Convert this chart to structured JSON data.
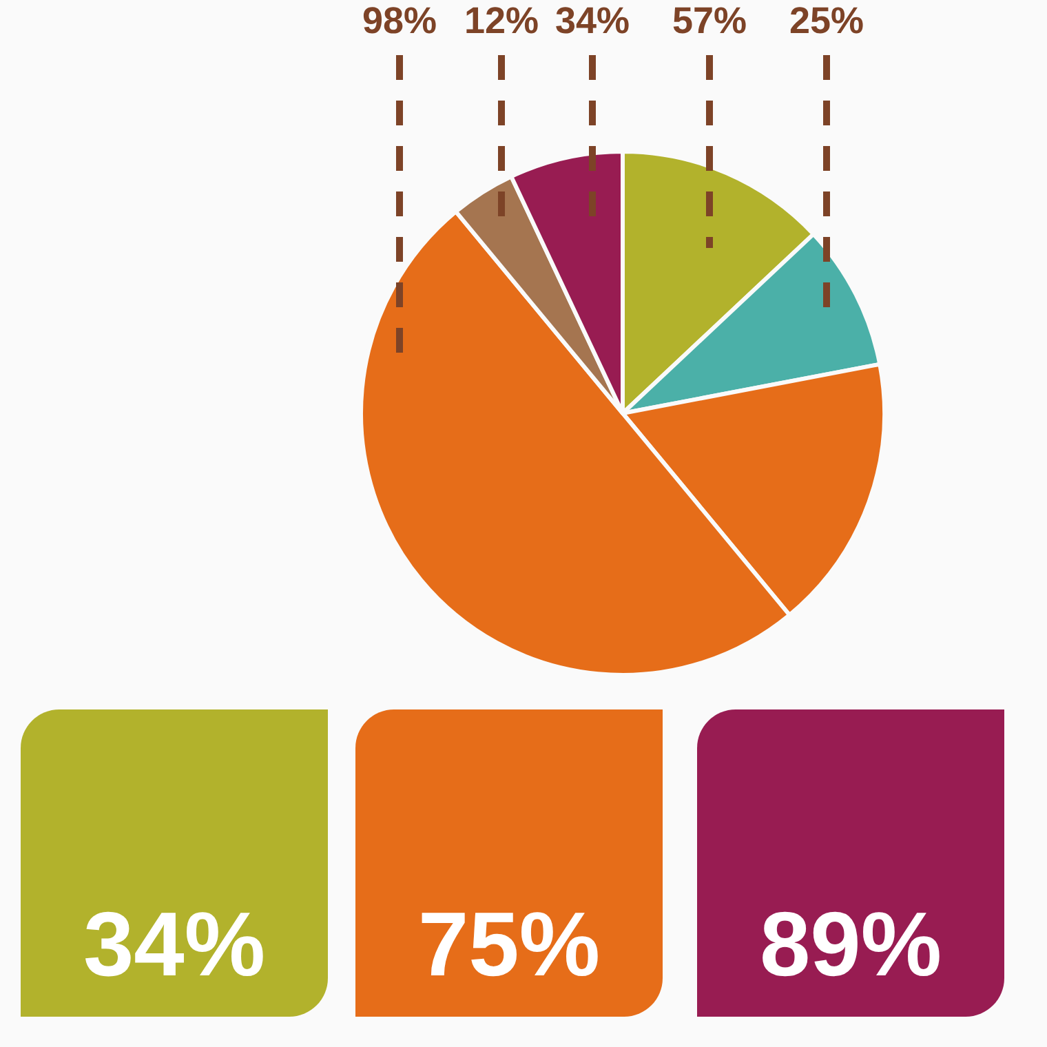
{
  "chart_data": [
    {
      "type": "pie",
      "categories": [
        null,
        null,
        null,
        null,
        null,
        null
      ],
      "values": [
        13,
        9,
        17,
        50,
        4,
        7
      ],
      "colors": [
        "#b2b22c",
        "#4bb0a8",
        "#e66d19",
        "#e66d19",
        "#a57550",
        "#981c52"
      ],
      "annotations": [
        "98%",
        "12%",
        "34%",
        "57%",
        "25%"
      ]
    },
    {
      "type": "other",
      "annotations": [
        "34%",
        "75%",
        "89%"
      ]
    }
  ]
}
